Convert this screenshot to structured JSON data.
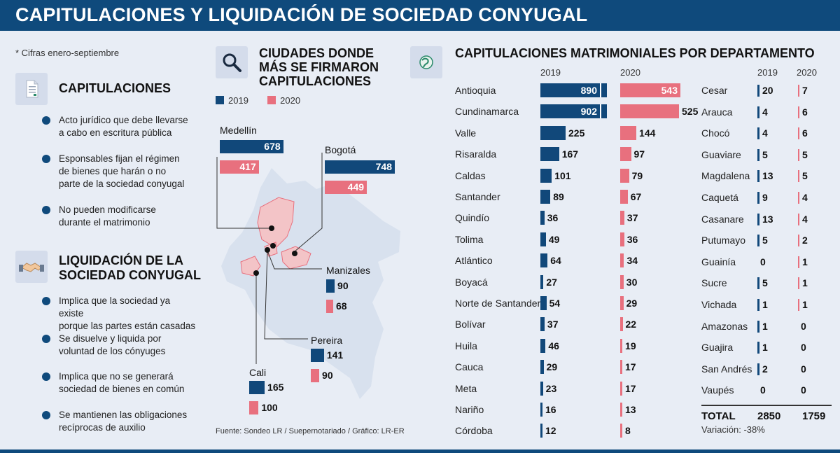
{
  "title": "CAPITULACIONES Y LIQUIDACIÓN DE SOCIEDAD CONYUGAL",
  "note": "* Cifras enero-septiembre",
  "capitulaciones": {
    "title": "CAPITULACIONES",
    "bullets": [
      [
        "Acto jurídico que debe llevarse",
        "a cabo en escritura pública"
      ],
      [
        "Esponsables fijan el régimen",
        "de bienes que harán o no",
        "parte de la sociedad conyugal"
      ],
      [
        "No pueden modificarse",
        "durante el matrimonio"
      ]
    ]
  },
  "liquidacion": {
    "title_line1": "LIQUIDACIÓN DE LA",
    "title_line2": "SOCIEDAD CONYUGAL",
    "bullets": [
      [
        "Implica que la sociedad ya existe",
        "porque las partes están casadas"
      ],
      [
        "Se disuelve y liquida por",
        "voluntad de los cónyuges"
      ],
      [
        "Implica que no se generará",
        "sociedad de bienes en común"
      ],
      [
        "Se mantienen las obligaciones",
        "recíprocas de auxilio"
      ]
    ]
  },
  "cities_title": [
    "CIUDADES DONDE",
    "MÁS SE FIRMARON",
    "CAPITULACIONES"
  ],
  "depts_title": "CAPITULACIONES MATRIMONIALES POR DEPARTAMENTO",
  "legend": {
    "y2019": "2019",
    "y2020": "2020"
  },
  "colors": {
    "y2019": "#11487a",
    "y2020": "#e8707e",
    "header": "#0f4a7c"
  },
  "source": "Fuente: Sondeo LR / Suepernotariado / Gráfico: LR-ER",
  "chart_data": [
    {
      "type": "bar",
      "title": "CIUDADES DONDE MÁS SE FIRMARON CAPITULACIONES",
      "categories": [
        "Medellín",
        "Bogotá",
        "Manizales",
        "Pereira",
        "Cali"
      ],
      "series": [
        {
          "name": "2019",
          "values": [
            678,
            748,
            90,
            141,
            165
          ]
        },
        {
          "name": "2020",
          "values": [
            417,
            449,
            68,
            90,
            100
          ]
        }
      ]
    },
    {
      "type": "bar",
      "title": "CAPITULACIONES MATRIMONIALES POR DEPARTAMENTO",
      "categories": [
        "Antioquia",
        "Cundinamarca",
        "Valle",
        "Risaralda",
        "Caldas",
        "Santander",
        "Quindío",
        "Tolima",
        "Atlántico",
        "Boyacá",
        "Norte de Santander",
        "Bolívar",
        "Huila",
        "Cauca",
        "Meta",
        "Nariño",
        "Córdoba",
        "Cesar",
        "Arauca",
        "Chocó",
        "Guaviare",
        "Magdalena",
        "Caquetá",
        "Casanare",
        "Putumayo",
        "Guainía",
        "Sucre",
        "Vichada",
        "Amazonas",
        "Guajira",
        "San Andrés",
        "Vaupés"
      ],
      "series": [
        {
          "name": "2019",
          "values": [
            890,
            902,
            225,
            167,
            101,
            89,
            36,
            49,
            64,
            27,
            54,
            37,
            46,
            29,
            23,
            16,
            12,
            20,
            4,
            4,
            5,
            13,
            9,
            13,
            5,
            0,
            5,
            1,
            1,
            1,
            2,
            0
          ]
        },
        {
          "name": "2020",
          "values": [
            543,
            525,
            144,
            97,
            79,
            67,
            37,
            36,
            34,
            30,
            29,
            22,
            19,
            17,
            17,
            13,
            8,
            7,
            6,
            6,
            5,
            5,
            4,
            4,
            2,
            1,
            1,
            1,
            0,
            0,
            0,
            0
          ]
        }
      ],
      "total_label": "TOTAL",
      "totals": {
        "2019": "2850",
        "2020": "1759"
      },
      "variation": "Variación: -38%"
    }
  ]
}
